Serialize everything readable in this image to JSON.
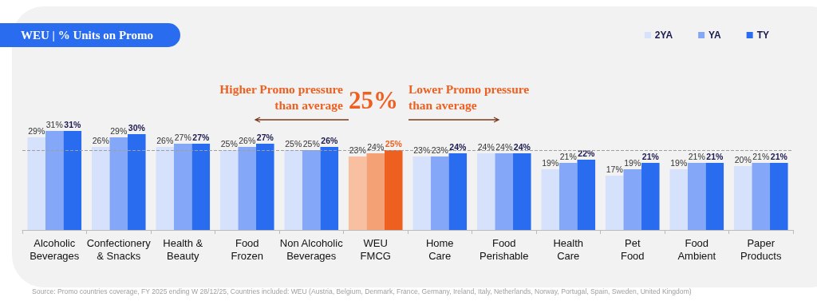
{
  "chart_data": {
    "type": "bar",
    "title": "WEU | % Units on Promo",
    "categories": [
      "Alcoholic Beverages",
      "Confectionery & Snacks",
      "Health & Beauty",
      "Food Frozen",
      "Non Alcoholic Beverages",
      "WEU FMCG",
      "Home Care",
      "Food Perishable",
      "Health Care",
      "Pet Food",
      "Food Ambient",
      "Paper Products"
    ],
    "series": [
      {
        "name": "2YA",
        "color": "#d6e2fb",
        "colors": [
          "#d6e2fb",
          "#d6e2fb",
          "#d6e2fb",
          "#d6e2fb",
          "#d6e2fb",
          "#f8bfa0",
          "#d6e2fb",
          "#d6e2fb",
          "#d6e2fb",
          "#d6e2fb",
          "#d6e2fb",
          "#d6e2fb"
        ],
        "values": [
          29,
          26,
          26,
          25,
          25,
          23,
          23,
          24,
          19,
          17,
          19,
          20
        ],
        "value_labels": [
          "29%",
          "26%",
          "26%",
          "25%",
          "25%",
          "23%",
          "23%",
          "24%",
          "19%",
          "17%",
          "19%",
          "20%"
        ]
      },
      {
        "name": "YA",
        "color": "#84a8f7",
        "colors": [
          "#84a8f7",
          "#84a8f7",
          "#84a8f7",
          "#84a8f7",
          "#84a8f7",
          "#f4a275",
          "#84a8f7",
          "#84a8f7",
          "#84a8f7",
          "#84a8f7",
          "#84a8f7",
          "#84a8f7"
        ],
        "values": [
          31,
          29,
          27,
          26,
          25,
          24,
          23,
          24,
          21,
          19,
          21,
          21
        ],
        "value_labels": [
          "31%",
          "29%",
          "27%",
          "26%",
          "25%",
          "24%",
          "23%",
          "24%",
          "21%",
          "19%",
          "21%",
          "21%"
        ]
      },
      {
        "name": "TY",
        "color": "#2a6cf0",
        "colors": [
          "#2a6cf0",
          "#2a6cf0",
          "#2a6cf0",
          "#2a6cf0",
          "#2a6cf0",
          "#ee6020",
          "#2a6cf0",
          "#2a6cf0",
          "#2a6cf0",
          "#2a6cf0",
          "#2a6cf0",
          "#2a6cf0"
        ],
        "values": [
          31,
          30,
          27,
          27,
          26,
          25,
          24,
          24,
          22,
          21,
          21,
          21
        ],
        "value_labels": [
          "31%",
          "30%",
          "27%",
          "27%",
          "26%",
          "25%",
          "24%",
          "24%",
          "22%",
          "21%",
          "21%",
          "21%"
        ]
      }
    ],
    "legend": "top right",
    "ref_lines": [
      {
        "axis": "y",
        "value": 25,
        "label": "25%",
        "color": "#9e9e9e",
        "line_style": "dashed"
      }
    ],
    "annotations": [
      "Higher Promo pressure than average",
      "Lower Promo pressure than average",
      "Source: Promo countries coverage, FY 2025 ending W 28/12/25, Countries included: WEU (Austria, Belgium, Denmark, France, Germany, Ireland, Italy, Netherlands, Norway, Portugal, Spain, Sweden, United Kingdom)"
    ]
  }
}
